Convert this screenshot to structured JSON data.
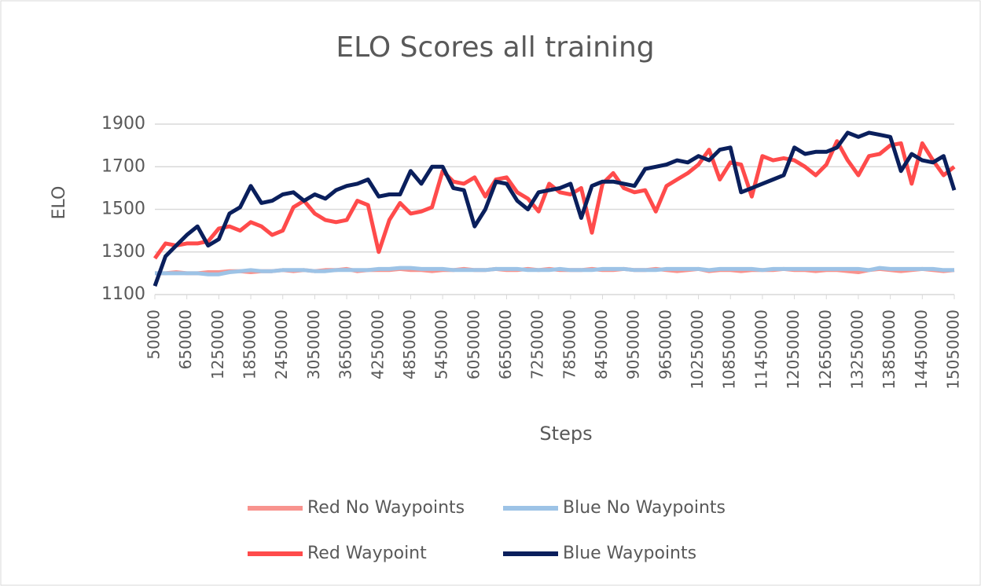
{
  "chart_data": {
    "type": "line",
    "title": "ELO Scores all training",
    "xlabel": "Steps",
    "ylabel": "ELO",
    "x": [
      50000,
      250000,
      450000,
      650000,
      850000,
      1050000,
      1250000,
      1450000,
      1650000,
      1850000,
      2050000,
      2250000,
      2450000,
      2650000,
      2850000,
      3050000,
      3250000,
      3450000,
      3650000,
      3850000,
      4050000,
      4250000,
      4450000,
      4650000,
      4850000,
      5050000,
      5250000,
      5450000,
      5650000,
      5850000,
      6050000,
      6250000,
      6450000,
      6650000,
      6850000,
      7050000,
      7250000,
      7450000,
      7650000,
      7850000,
      8050000,
      8250000,
      8450000,
      8650000,
      8850000,
      9050000,
      9250000,
      9450000,
      9650000,
      9850000,
      10050000,
      10250000,
      10450000,
      10650000,
      10850000,
      11050000,
      11250000,
      11450000,
      11650000,
      11850000,
      12050000,
      12250000,
      12450000,
      12650000,
      12850000,
      13050000,
      13250000,
      13450000,
      13650000,
      13850000,
      14050000,
      14250000,
      14450000,
      14650000,
      14850000,
      15050000
    ],
    "series": [
      {
        "name": "Red No Waypoints",
        "color": "#f8938e",
        "values": [
          1200,
          1200,
          1205,
          1200,
          1200,
          1205,
          1205,
          1210,
          1210,
          1205,
          1210,
          1210,
          1215,
          1210,
          1215,
          1210,
          1215,
          1215,
          1220,
          1210,
          1215,
          1215,
          1215,
          1220,
          1215,
          1215,
          1210,
          1215,
          1215,
          1220,
          1215,
          1215,
          1220,
          1215,
          1215,
          1220,
          1215,
          1220,
          1215,
          1215,
          1215,
          1220,
          1215,
          1215,
          1220,
          1215,
          1215,
          1220,
          1215,
          1210,
          1215,
          1220,
          1210,
          1215,
          1215,
          1210,
          1215,
          1215,
          1215,
          1220,
          1215,
          1215,
          1210,
          1215,
          1215,
          1210,
          1205,
          1215,
          1220,
          1215,
          1210,
          1215,
          1220,
          1215,
          1210,
          1215
        ]
      },
      {
        "name": "Blue No Waypoints",
        "color": "#9dc3e6",
        "values": [
          1200,
          1200,
          1200,
          1200,
          1200,
          1195,
          1195,
          1205,
          1210,
          1215,
          1210,
          1210,
          1215,
          1215,
          1215,
          1210,
          1210,
          1215,
          1215,
          1215,
          1215,
          1220,
          1220,
          1225,
          1225,
          1220,
          1220,
          1220,
          1215,
          1215,
          1215,
          1215,
          1220,
          1220,
          1220,
          1215,
          1215,
          1215,
          1220,
          1215,
          1215,
          1215,
          1220,
          1220,
          1220,
          1215,
          1215,
          1215,
          1220,
          1220,
          1220,
          1220,
          1215,
          1220,
          1220,
          1220,
          1220,
          1215,
          1220,
          1220,
          1220,
          1220,
          1220,
          1220,
          1220,
          1220,
          1220,
          1215,
          1225,
          1220,
          1220,
          1220,
          1220,
          1220,
          1215,
          1215
        ]
      },
      {
        "name": "Red Waypoint",
        "color": "#ff4b4b",
        "values": [
          1270,
          1340,
          1330,
          1340,
          1340,
          1350,
          1410,
          1420,
          1400,
          1440,
          1420,
          1380,
          1400,
          1510,
          1540,
          1480,
          1450,
          1440,
          1450,
          1540,
          1520,
          1300,
          1450,
          1530,
          1480,
          1490,
          1510,
          1680,
          1630,
          1620,
          1650,
          1560,
          1640,
          1650,
          1580,
          1550,
          1490,
          1620,
          1580,
          1570,
          1600,
          1390,
          1620,
          1670,
          1600,
          1580,
          1590,
          1490,
          1610,
          1640,
          1670,
          1710,
          1780,
          1640,
          1720,
          1710,
          1560,
          1750,
          1730,
          1740,
          1730,
          1700,
          1660,
          1710,
          1820,
          1730,
          1660,
          1750,
          1760,
          1800,
          1810,
          1620,
          1810,
          1730,
          1660,
          1700
        ]
      },
      {
        "name": "Blue Waypoints",
        "color": "#0a1f5c",
        "values": [
          1140,
          1280,
          1330,
          1380,
          1420,
          1330,
          1360,
          1480,
          1510,
          1610,
          1530,
          1540,
          1570,
          1580,
          1540,
          1570,
          1550,
          1590,
          1610,
          1620,
          1640,
          1560,
          1570,
          1570,
          1680,
          1620,
          1700,
          1700,
          1600,
          1590,
          1420,
          1500,
          1630,
          1620,
          1540,
          1500,
          1580,
          1590,
          1600,
          1620,
          1460,
          1610,
          1630,
          1630,
          1620,
          1610,
          1690,
          1700,
          1710,
          1730,
          1720,
          1750,
          1730,
          1780,
          1790,
          1580,
          1600,
          1620,
          1640,
          1660,
          1790,
          1760,
          1770,
          1770,
          1790,
          1860,
          1840,
          1860,
          1850,
          1840,
          1680,
          1760,
          1730,
          1720,
          1750,
          1590
        ]
      }
    ],
    "xlim": [
      50000,
      15050000
    ],
    "xticks": [
      50000,
      650000,
      1250000,
      1850000,
      2450000,
      3050000,
      3650000,
      4250000,
      4850000,
      5450000,
      6050000,
      6650000,
      7250000,
      7850000,
      8450000,
      9050000,
      9650000,
      10250000,
      10850000,
      11450000,
      12050000,
      12650000,
      13250000,
      13850000,
      14450000,
      15050000
    ],
    "ylim": [
      1100,
      1900
    ],
    "yticks": [
      1100,
      1300,
      1500,
      1700,
      1900
    ],
    "grid": true
  }
}
